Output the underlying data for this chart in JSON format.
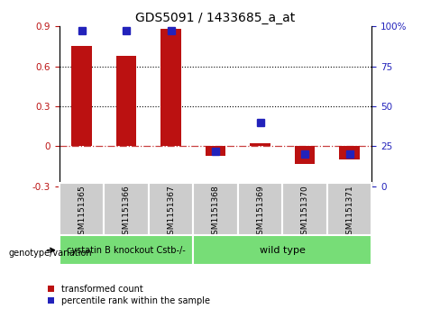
{
  "title": "GDS5091 / 1433685_a_at",
  "categories": [
    "GSM1151365",
    "GSM1151366",
    "GSM1151367",
    "GSM1151368",
    "GSM1151369",
    "GSM1151370",
    "GSM1151371"
  ],
  "red_values": [
    0.75,
    0.68,
    0.88,
    -0.07,
    0.02,
    -0.13,
    -0.1
  ],
  "blue_percentile": [
    97,
    97,
    97,
    22,
    40,
    20,
    20
  ],
  "ylim_left": [
    -0.3,
    0.9
  ],
  "ylim_right": [
    0,
    100
  ],
  "yticks_left": [
    -0.3,
    0.0,
    0.3,
    0.6,
    0.9
  ],
  "yticks_right": [
    0,
    25,
    50,
    75,
    100
  ],
  "ytick_labels_left": [
    "-0.3",
    "0",
    "0.3",
    "0.6",
    "0.9"
  ],
  "ytick_labels_right": [
    "0",
    "25",
    "50",
    "75",
    "100%"
  ],
  "hlines": [
    0.3,
    0.6
  ],
  "group1_label": "cystatin B knockout Cstb-/-",
  "group2_label": "wild type",
  "group1_indices": [
    0,
    1,
    2
  ],
  "group2_indices": [
    3,
    4,
    5,
    6
  ],
  "legend_red": "transformed count",
  "legend_blue": "percentile rank within the sample",
  "genotype_label": "genotype/variation",
  "red_color": "#bb1111",
  "blue_color": "#2222bb",
  "green_color": "#77dd77",
  "gray_color": "#cccccc",
  "bar_width": 0.45,
  "blue_marker_size": 6,
  "title_fontsize": 10,
  "tick_fontsize": 7.5,
  "label_fontsize": 7,
  "cat_fontsize": 6.5,
  "group_fontsize": 7,
  "legend_fontsize": 7
}
